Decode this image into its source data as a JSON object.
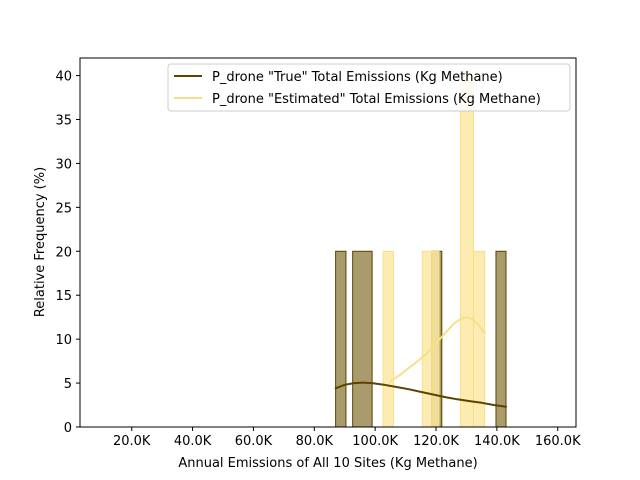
{
  "chart_data": {
    "type": "histogram",
    "title": "",
    "xlabel": "Annual Emissions of All 10 Sites (Kg Methane)",
    "ylabel": "Relative Frequency (%)",
    "xlim": [
      3000,
      166000
    ],
    "ylim": [
      0,
      42
    ],
    "xticks": [
      {
        "value": 20000,
        "label": "20.0K"
      },
      {
        "value": 40000,
        "label": "40.0K"
      },
      {
        "value": 60000,
        "label": "60.0K"
      },
      {
        "value": 80000,
        "label": "80.0K"
      },
      {
        "value": 100000,
        "label": "100.0K"
      },
      {
        "value": 120000,
        "label": "120.0K"
      },
      {
        "value": 140000,
        "label": "140.0K"
      },
      {
        "value": 160000,
        "label": "160.0K"
      }
    ],
    "yticks": [
      0,
      5,
      10,
      15,
      20,
      25,
      30,
      35,
      40
    ],
    "legend_position": "top-right",
    "series": [
      {
        "name": "P_drone \"True\" Total Emissions (Kg Methane)",
        "color": "#5c4400",
        "fill_color": "#a99b6b",
        "bins": [
          {
            "x0": 87000,
            "x1": 90400,
            "y": 20
          },
          {
            "x0": 92600,
            "x1": 99000,
            "y": 20
          },
          {
            "x0": 118600,
            "x1": 121900,
            "y": 20
          },
          {
            "x0": 139700,
            "x1": 143000,
            "y": 20
          }
        ],
        "kde": {
          "x": [
            87000,
            90000,
            93000,
            96000,
            99000,
            103000,
            107000,
            111000,
            115000,
            119000,
            123000,
            127000,
            131000,
            135000,
            139000,
            143000
          ],
          "y": [
            4.4,
            4.8,
            5.0,
            5.05,
            5.0,
            4.8,
            4.55,
            4.3,
            4.0,
            3.7,
            3.4,
            3.15,
            2.95,
            2.75,
            2.5,
            2.3
          ]
        }
      },
      {
        "name": "P_drone \"Estimated\" Total Emissions (Kg Methane)",
        "color": "#f7e086",
        "fill_color": "#fbe9a3",
        "bins": [
          {
            "x0": 102600,
            "x1": 106000,
            "y": 20
          },
          {
            "x0": 115500,
            "x1": 119000,
            "y": 20
          },
          {
            "x0": 119000,
            "x1": 121000,
            "y": 20
          },
          {
            "x0": 128000,
            "x1": 132300,
            "y": 40
          },
          {
            "x0": 132300,
            "x1": 136000,
            "y": 20
          }
        ],
        "kde": {
          "x": [
            105000,
            108000,
            111000,
            114000,
            117000,
            120000,
            123000,
            126000,
            128000,
            130000,
            132000,
            134000,
            136000
          ],
          "y": [
            5.2,
            5.9,
            6.7,
            7.5,
            8.4,
            9.5,
            10.7,
            11.8,
            12.3,
            12.5,
            12.3,
            11.6,
            10.7
          ]
        }
      }
    ]
  }
}
